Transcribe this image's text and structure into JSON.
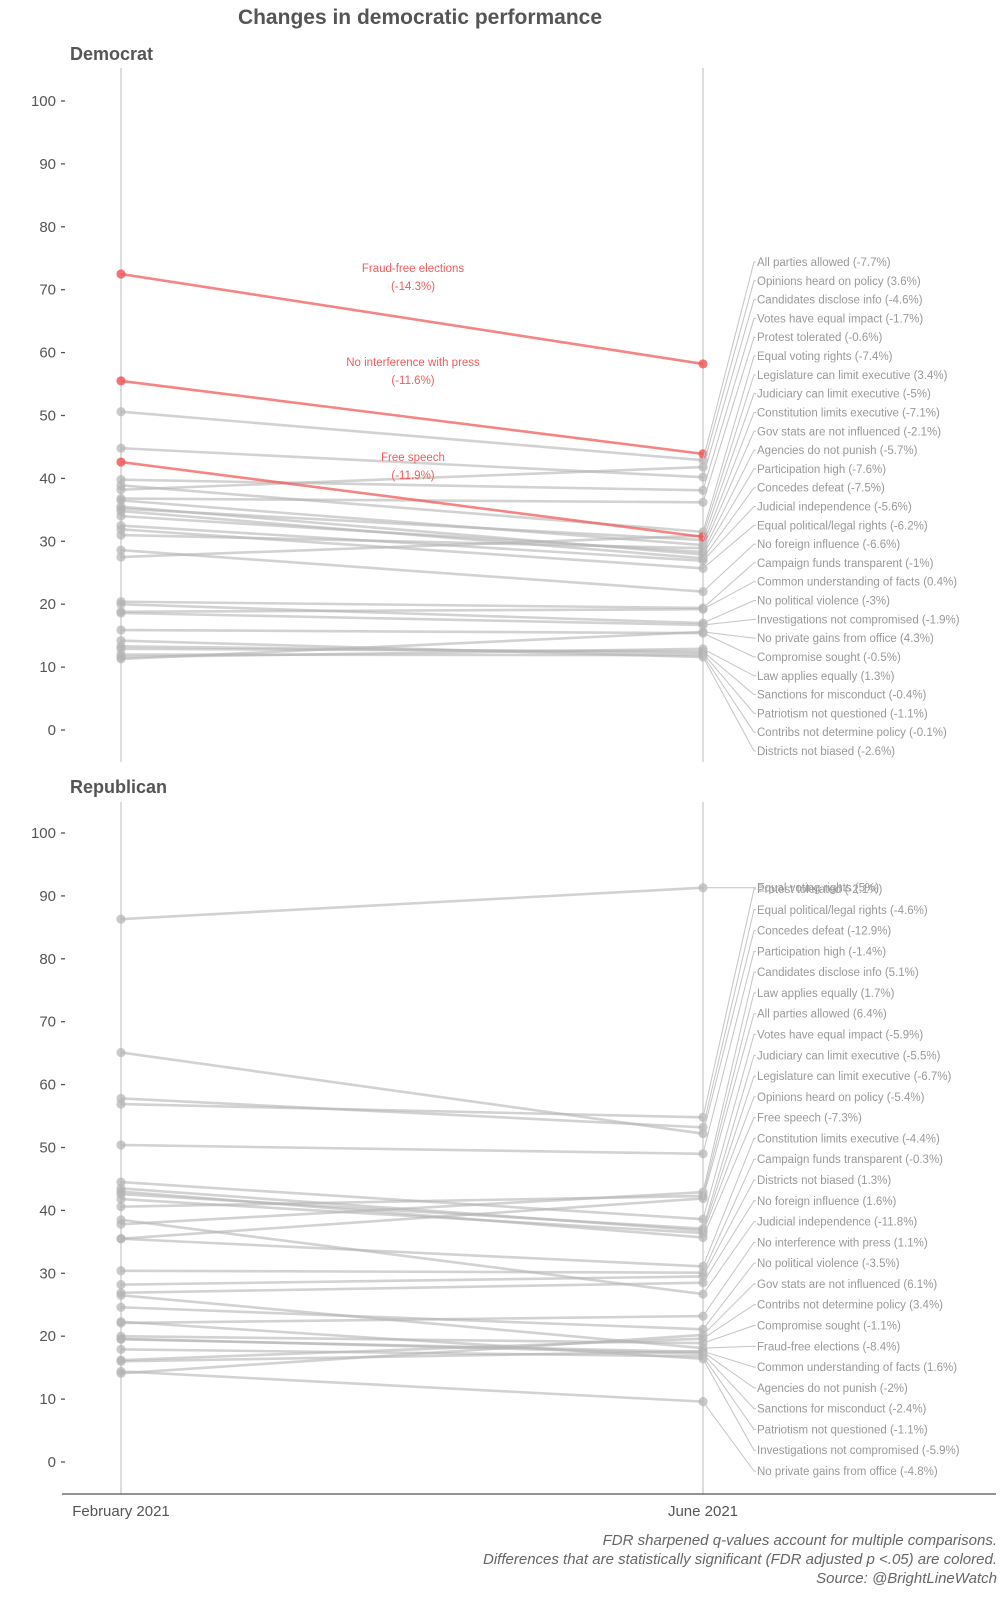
{
  "title": "Changes in democratic performance",
  "x_categories": [
    "February 2021",
    "June 2021"
  ],
  "y_ticks": [
    0,
    10,
    20,
    30,
    40,
    50,
    60,
    70,
    80,
    90,
    100
  ],
  "colors": {
    "significant": "#f15b5b",
    "insignificant": "#b4b4b4",
    "axis": "#555555",
    "text": "#555555"
  },
  "footnote": [
    "FDR sharpened q-values account for multiple comparisons.",
    "Differences that are statistically significant (FDR adjusted p <.05) are colored.",
    "Source: @BrightLineWatch"
  ],
  "chart_data": [
    {
      "type": "line",
      "panel": "Democrat",
      "ylim": [
        0,
        100
      ],
      "categories": [
        "February 2021",
        "June 2021"
      ],
      "series": [
        {
          "name": "Fraud-free elections",
          "label": "Fraud-free elections (-14.3%)",
          "values": [
            72.5,
            58.2
          ],
          "significant": true
        },
        {
          "name": "No interference with press",
          "label": "No interference with press (-11.6%)",
          "values": [
            55.5,
            43.9
          ],
          "significant": true
        },
        {
          "name": "Free speech",
          "label": "Free speech (-11.9%)",
          "values": [
            42.6,
            30.7
          ],
          "significant": true
        },
        {
          "name": "All parties allowed",
          "label": "All parties allowed (-7.7%)",
          "values": [
            50.6,
            42.9
          ],
          "significant": false
        },
        {
          "name": "Opinions heard on policy",
          "label": "Opinions heard on policy (3.6%)",
          "values": [
            38.2,
            41.8
          ],
          "significant": false
        },
        {
          "name": "Candidates disclose info",
          "label": "Candidates disclose info (-4.6%)",
          "values": [
            44.8,
            40.2
          ],
          "significant": false
        },
        {
          "name": "Votes have equal impact",
          "label": "Votes have equal impact (-1.7%)",
          "values": [
            39.8,
            38.1
          ],
          "significant": false
        },
        {
          "name": "Protest tolerated",
          "label": "Protest tolerated (-0.6%)",
          "values": [
            36.8,
            36.2
          ],
          "significant": false
        },
        {
          "name": "Equal voting rights",
          "label": "Equal voting rights (-7.4%)",
          "values": [
            38.9,
            31.5
          ],
          "significant": false
        },
        {
          "name": "Legislature can limit executive",
          "label": "Legislature can limit executive (3.4%)",
          "values": [
            27.5,
            30.9
          ],
          "significant": false
        },
        {
          "name": "Judiciary can limit executive",
          "label": "Judiciary can limit executive (-5%)",
          "values": [
            35.2,
            30.2
          ],
          "significant": false
        },
        {
          "name": "Constitution limits executive",
          "label": "Constitution limits executive (-7.1%)",
          "values": [
            36.5,
            29.4
          ],
          "significant": false
        },
        {
          "name": "Gov stats are not influenced",
          "label": "Gov stats are not influenced (-2.1%)",
          "values": [
            31.0,
            28.9
          ],
          "significant": false
        },
        {
          "name": "Agencies do not punish",
          "label": "Agencies do not punish (-5.7%)",
          "values": [
            34.0,
            28.3
          ],
          "significant": false
        },
        {
          "name": "Participation high",
          "label": "Participation high (-7.6%)",
          "values": [
            35.5,
            27.9
          ],
          "significant": false
        },
        {
          "name": "Concedes defeat",
          "label": "Concedes defeat (-7.5%)",
          "values": [
            34.8,
            27.3
          ],
          "significant": false
        },
        {
          "name": "Judicial independence",
          "label": "Judicial independence (-5.6%)",
          "values": [
            32.5,
            26.9
          ],
          "significant": false
        },
        {
          "name": "Equal political/legal rights",
          "label": "Equal political/legal rights (-6.2%)",
          "values": [
            31.9,
            25.7
          ],
          "significant": false
        },
        {
          "name": "No foreign influence",
          "label": "No foreign influence (-6.6%)",
          "values": [
            28.6,
            22.0
          ],
          "significant": false
        },
        {
          "name": "Campaign funds transparent",
          "label": "Campaign funds transparent (-1%)",
          "values": [
            20.4,
            19.4
          ],
          "significant": false
        },
        {
          "name": "Common understanding of facts",
          "label": "Common understanding of facts (0.4%)",
          "values": [
            18.8,
            19.2
          ],
          "significant": false
        },
        {
          "name": "No political violence",
          "label": "No political violence (-3%)",
          "values": [
            20.0,
            17.0
          ],
          "significant": false
        },
        {
          "name": "Investigations not compromised",
          "label": "Investigations not compromised (-1.9%)",
          "values": [
            18.6,
            16.7
          ],
          "significant": false
        },
        {
          "name": "No private gains from office",
          "label": "No private gains from office (4.3%)",
          "values": [
            11.3,
            15.6
          ],
          "significant": false
        },
        {
          "name": "Compromise sought",
          "label": "Compromise sought (-0.5%)",
          "values": [
            15.9,
            15.4
          ],
          "significant": false
        },
        {
          "name": "Law applies equally",
          "label": "Law applies equally (1.3%)",
          "values": [
            11.6,
            12.9
          ],
          "significant": false
        },
        {
          "name": "Sanctions for misconduct",
          "label": "Sanctions for misconduct (-0.4%)",
          "values": [
            12.9,
            12.5
          ],
          "significant": false
        },
        {
          "name": "Patriotism not questioned",
          "label": "Patriotism not questioned (-1.1%)",
          "values": [
            13.3,
            12.2
          ],
          "significant": false
        },
        {
          "name": "Contribs not determine policy",
          "label": "Contribs not determine policy (-0.1%)",
          "values": [
            12.0,
            11.9
          ],
          "significant": false
        },
        {
          "name": "Districts not biased",
          "label": "Districts not biased (-2.6%)",
          "values": [
            14.2,
            11.6
          ],
          "significant": false
        }
      ]
    },
    {
      "type": "line",
      "panel": "Republican",
      "ylim": [
        0,
        100
      ],
      "categories": [
        "February 2021",
        "June 2021"
      ],
      "series": [
        {
          "name": "Equal voting rights",
          "label": "Equal voting rights (5%)",
          "values": [
            86.3,
            91.3
          ],
          "significant": false
        },
        {
          "name": "Protest tolerated",
          "label": "Protest tolerated (-2.1%)",
          "values": [
            56.9,
            54.8
          ],
          "significant": false
        },
        {
          "name": "Equal political/legal rights",
          "label": "Equal political/legal rights (-4.6%)",
          "values": [
            57.8,
            53.2
          ],
          "significant": false
        },
        {
          "name": "Concedes defeat",
          "label": "Concedes defeat (-12.9%)",
          "values": [
            65.1,
            52.2
          ],
          "significant": false
        },
        {
          "name": "Participation high",
          "label": "Participation high (-1.4%)",
          "values": [
            50.4,
            49.0
          ],
          "significant": false
        },
        {
          "name": "Candidates disclose info",
          "label": "Candidates disclose info (5.1%)",
          "values": [
            37.8,
            42.9
          ],
          "significant": false
        },
        {
          "name": "Law applies equally",
          "label": "Law applies equally (1.7%)",
          "values": [
            40.6,
            42.3
          ],
          "significant": false
        },
        {
          "name": "All parties allowed",
          "label": "All parties allowed (6.4%)",
          "values": [
            35.5,
            41.9
          ],
          "significant": false
        },
        {
          "name": "Votes have equal impact",
          "label": "Votes have equal impact (-5.9%)",
          "values": [
            44.5,
            38.6
          ],
          "significant": false
        },
        {
          "name": "Judiciary can limit executive",
          "label": "Judiciary can limit executive (-5.5%)",
          "values": [
            42.6,
            37.1
          ],
          "significant": false
        },
        {
          "name": "Legislature can limit executive",
          "label": "Legislature can limit executive (-6.7%)",
          "values": [
            43.5,
            36.8
          ],
          "significant": false
        },
        {
          "name": "Opinions heard on policy",
          "label": "Opinions heard on policy (-5.4%)",
          "values": [
            41.8,
            36.4
          ],
          "significant": false
        },
        {
          "name": "Free speech",
          "label": "Free speech (-7.3%)",
          "values": [
            43.0,
            35.7
          ],
          "significant": false
        },
        {
          "name": "Constitution limits executive",
          "label": "Constitution limits executive (-4.4%)",
          "values": [
            35.5,
            31.1
          ],
          "significant": false
        },
        {
          "name": "Campaign funds transparent",
          "label": "Campaign funds transparent (-0.3%)",
          "values": [
            30.4,
            30.1
          ],
          "significant": false
        },
        {
          "name": "Districts not biased",
          "label": "Districts not biased (1.3%)",
          "values": [
            28.2,
            29.5
          ],
          "significant": false
        },
        {
          "name": "No foreign influence",
          "label": "No foreign influence (1.6%)",
          "values": [
            26.9,
            28.5
          ],
          "significant": false
        },
        {
          "name": "Judicial independence",
          "label": "Judicial independence (-11.8%)",
          "values": [
            38.5,
            26.7
          ],
          "significant": false
        },
        {
          "name": "No interference with press",
          "label": "No interference with press (1.1%)",
          "values": [
            22.1,
            23.2
          ],
          "significant": false
        },
        {
          "name": "No political violence",
          "label": "No political violence (-3.5%)",
          "values": [
            24.6,
            21.1
          ],
          "significant": false
        },
        {
          "name": "Gov stats are not influenced",
          "label": "Gov stats are not influenced (6.1%)",
          "values": [
            14.1,
            20.2
          ],
          "significant": false
        },
        {
          "name": "Contribs not determine policy",
          "label": "Contribs not determine policy (3.4%)",
          "values": [
            16.2,
            19.6
          ],
          "significant": false
        },
        {
          "name": "Compromise sought",
          "label": "Compromise sought (-1.1%)",
          "values": [
            20.0,
            18.9
          ],
          "significant": false
        },
        {
          "name": "Fraud-free elections",
          "label": "Fraud-free elections (-8.4%)",
          "values": [
            26.5,
            18.1
          ],
          "significant": false
        },
        {
          "name": "Common understanding of facts",
          "label": "Common understanding of facts (1.6%)",
          "values": [
            16.0,
            17.6
          ],
          "significant": false
        },
        {
          "name": "Agencies do not punish",
          "label": "Agencies do not punish (-2%)",
          "values": [
            19.5,
            17.5
          ],
          "significant": false
        },
        {
          "name": "Sanctions for misconduct",
          "label": "Sanctions for misconduct (-2.4%)",
          "values": [
            19.6,
            17.2
          ],
          "significant": false
        },
        {
          "name": "Patriotism not questioned",
          "label": "Patriotism not questioned (-1.1%)",
          "values": [
            17.9,
            16.8
          ],
          "significant": false
        },
        {
          "name": "Investigations not compromised",
          "label": "Investigations not compromised (-5.9%)",
          "values": [
            22.3,
            16.4
          ],
          "significant": false
        },
        {
          "name": "No private gains from office",
          "label": "No private gains from office (-4.8%)",
          "values": [
            14.4,
            9.6
          ],
          "significant": false
        }
      ]
    }
  ]
}
